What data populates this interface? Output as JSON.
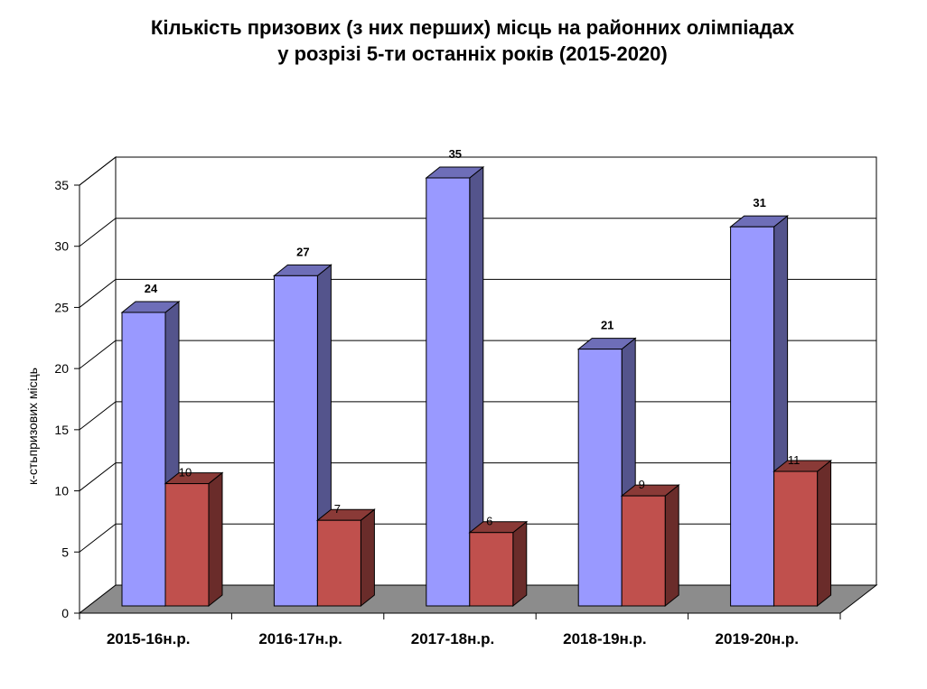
{
  "chart_data": {
    "type": "bar",
    "title_lines": [
      "Кількість призових (з них перших) місць на районних олімпіадах",
      "у розрізі 5-ти останніх років (2015-2020)"
    ],
    "xlabel": "",
    "ylabel": "к-стьпризових місць",
    "categories": [
      "2015-16н.р.",
      "2016-17н.р.",
      "2017-18н.р.",
      "2018-19н.р.",
      "2019-20н.р."
    ],
    "ylim": [
      0,
      35
    ],
    "yticks": [
      0,
      5,
      10,
      15,
      20,
      25,
      30,
      35
    ],
    "grid": true,
    "legend": "none",
    "style": "3d-clustered-column",
    "series": [
      {
        "values": [
          24,
          27,
          35,
          21,
          31
        ],
        "color": "#9999ff",
        "label_bold": true
      },
      {
        "values": [
          10,
          7,
          6,
          9,
          11
        ],
        "color": "#c0504d",
        "label_bold": false
      }
    ]
  }
}
